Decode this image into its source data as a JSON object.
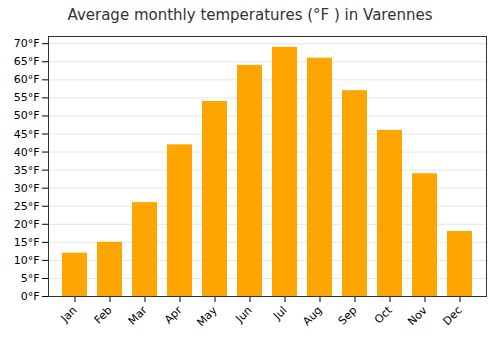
{
  "chart_data": {
    "type": "bar",
    "title": "Average monthly temperatures (°F ) in Varennes",
    "categories": [
      "Jan",
      "Feb",
      "Mar",
      "Apr",
      "May",
      "Jun",
      "Jul",
      "Aug",
      "Sep",
      "Oct",
      "Nov",
      "Dec"
    ],
    "values": [
      12,
      15,
      26,
      42,
      54,
      64,
      69,
      66,
      57,
      46,
      34,
      18
    ],
    "color": "#FFA500",
    "ylim": [
      0,
      72
    ],
    "yticks": [
      {
        "value": 0,
        "label": "0°F"
      },
      {
        "value": 5,
        "label": "5°F"
      },
      {
        "value": 10,
        "label": "10°F"
      },
      {
        "value": 15,
        "label": "15°F"
      },
      {
        "value": 20,
        "label": "20°F"
      },
      {
        "value": 25,
        "label": "25°F"
      },
      {
        "value": 30,
        "label": "30°F"
      },
      {
        "value": 35,
        "label": "35°F"
      },
      {
        "value": 40,
        "label": "40°F"
      },
      {
        "value": 45,
        "label": "45°F"
      },
      {
        "value": 50,
        "label": "50°F"
      },
      {
        "value": 55,
        "label": "55°F"
      },
      {
        "value": 60,
        "label": "60°F"
      },
      {
        "value": 65,
        "label": "65°F"
      },
      {
        "value": 70,
        "label": "70°F"
      }
    ],
    "grid": true
  }
}
